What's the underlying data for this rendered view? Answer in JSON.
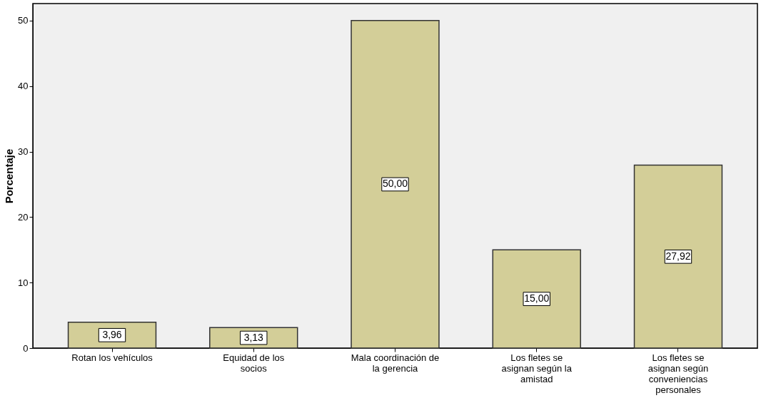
{
  "chart_data": {
    "type": "bar",
    "ylabel": "Porcentaje",
    "categories": [
      "Rotan los vehículos",
      "Equidad de los socios",
      "Mala coordinación de la gerencia",
      "Los fletes se asignan según la amistad",
      "Los fletes se asignan según conveniencias personales"
    ],
    "values": [
      3.96,
      3.13,
      50.0,
      15.0,
      27.92
    ],
    "value_labels": [
      "3,96",
      "3,13",
      "50,00",
      "15,00",
      "27,92"
    ],
    "color": "#d3ce98",
    "ylim": [
      0,
      52.6
    ],
    "yticks": [
      0,
      10,
      20,
      30,
      40,
      50
    ],
    "grid": false
  }
}
